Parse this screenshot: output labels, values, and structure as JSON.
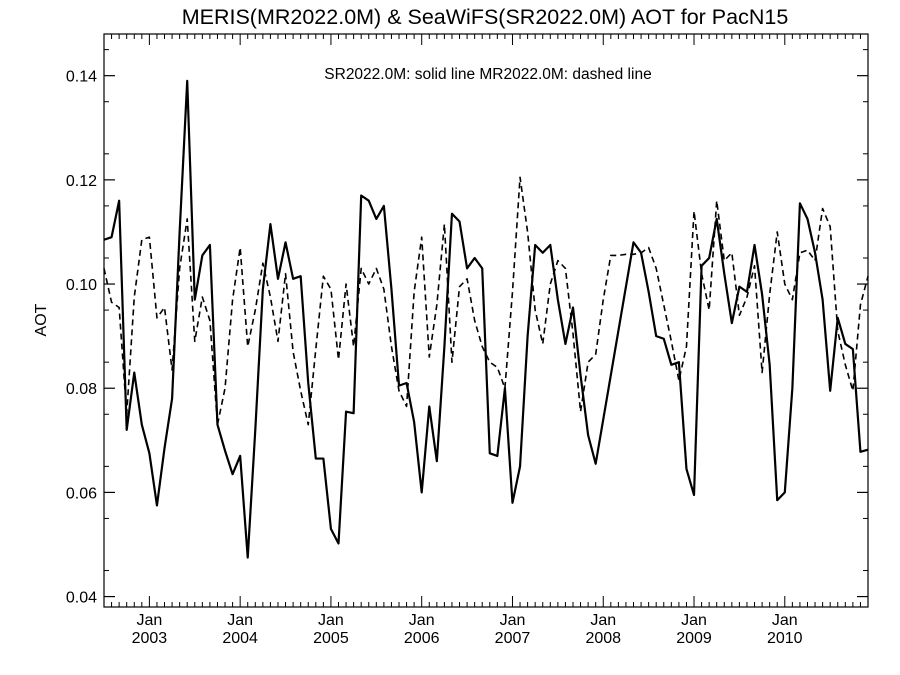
{
  "chart_data": {
    "type": "line",
    "title": "MERIS(MR2022.0M) & SeaWiFS(SR2022.0M)  AOT for PacN15",
    "subtitle": "SR2022.0M: solid line   MR2022.0M: dashed line",
    "xlabel": "",
    "ylabel": "AOT",
    "ylim": [
      0.038,
      0.148
    ],
    "xlim": [
      "2002-07",
      "2010-12"
    ],
    "yticks": [
      "0.04",
      "0.06",
      "0.08",
      "0.10",
      "0.12",
      "0.14"
    ],
    "xticks": [
      {
        "month": "Jan",
        "year": "2003",
        "date": "2003-01"
      },
      {
        "month": "Jan",
        "year": "2004",
        "date": "2004-01"
      },
      {
        "month": "Jan",
        "year": "2005",
        "date": "2005-01"
      },
      {
        "month": "Jan",
        "year": "2006",
        "date": "2006-01"
      },
      {
        "month": "Jan",
        "year": "2007",
        "date": "2007-01"
      },
      {
        "month": "Jan",
        "year": "2008",
        "date": "2008-01"
      },
      {
        "month": "Jan",
        "year": "2009",
        "date": "2009-01"
      },
      {
        "month": "Jan",
        "year": "2010",
        "date": "2010-01"
      }
    ],
    "grid": false,
    "series": [
      {
        "name": "SR2022.0M",
        "style": "solid",
        "color": "#000000",
        "x": [
          "2002-07",
          "2002-08",
          "2002-09",
          "2002-10",
          "2002-11",
          "2002-12",
          "2003-01",
          "2003-02",
          "2003-03",
          "2003-04",
          "2003-05",
          "2003-06",
          "2003-07",
          "2003-08",
          "2003-09",
          "2003-10",
          "2003-11",
          "2003-12",
          "2004-01",
          "2004-02",
          "2004-03",
          "2004-04",
          "2004-05",
          "2004-06",
          "2004-07",
          "2004-08",
          "2004-09",
          "2004-10",
          "2004-11",
          "2004-12",
          "2005-01",
          "2005-02",
          "2005-03",
          "2005-04",
          "2005-05",
          "2005-06",
          "2005-07",
          "2005-08",
          "2005-09",
          "2005-10",
          "2005-11",
          "2005-12",
          "2006-01",
          "2006-02",
          "2006-03",
          "2006-04",
          "2006-05",
          "2006-06",
          "2006-07",
          "2006-08",
          "2006-09",
          "2006-10",
          "2006-11",
          "2006-12",
          "2007-01",
          "2007-02",
          "2007-03",
          "2007-04",
          "2007-05",
          "2007-06",
          "2007-07",
          "2007-08",
          "2007-09",
          "2007-10",
          "2007-11",
          "2007-12",
          "2008-05",
          "2008-06",
          "2008-07",
          "2008-08",
          "2008-09",
          "2008-10",
          "2008-11",
          "2008-12",
          "2009-01",
          "2009-02",
          "2009-03",
          "2009-04",
          "2009-05",
          "2009-06",
          "2009-07",
          "2009-08",
          "2009-09",
          "2009-10",
          "2009-11",
          "2009-12",
          "2010-01",
          "2010-02",
          "2010-03",
          "2010-04",
          "2010-05",
          "2010-06",
          "2010-07",
          "2010-08",
          "2010-09",
          "2010-10",
          "2010-11",
          "2010-12"
        ],
        "values": [
          0.1085,
          0.109,
          0.116,
          0.072,
          0.083,
          0.073,
          0.0675,
          0.0575,
          0.0685,
          0.078,
          0.11,
          0.139,
          0.097,
          0.1055,
          0.1075,
          0.073,
          0.068,
          0.0635,
          0.067,
          0.0475,
          0.072,
          0.099,
          0.1115,
          0.101,
          0.108,
          0.101,
          0.1015,
          0.081,
          0.0665,
          0.0665,
          0.053,
          0.0502,
          0.0755,
          0.0752,
          0.117,
          0.116,
          0.1125,
          0.115,
          0.099,
          0.0805,
          0.081,
          0.0735,
          0.06,
          0.0765,
          0.066,
          0.088,
          0.1135,
          0.112,
          0.103,
          0.105,
          0.103,
          0.0675,
          0.067,
          0.08,
          0.058,
          0.065,
          0.09,
          0.1075,
          0.106,
          0.1075,
          0.097,
          0.0885,
          0.0955,
          0.0825,
          0.071,
          0.0655,
          0.108,
          0.106,
          0.0985,
          0.09,
          0.0895,
          0.0845,
          0.085,
          0.0645,
          0.0595,
          0.1035,
          0.105,
          0.1125,
          0.102,
          0.0925,
          0.0995,
          0.0985,
          0.1075,
          0.098,
          0.0845,
          0.0585,
          0.06,
          0.08,
          0.1155,
          0.1125,
          0.106,
          0.097,
          0.0795,
          0.0935,
          0.0885,
          0.0875,
          0.0678,
          0.0682
        ]
      },
      {
        "name": "MR2022.0M",
        "style": "dashed",
        "color": "#000000",
        "x": [
          "2002-07",
          "2002-08",
          "2002-09",
          "2002-10",
          "2002-11",
          "2002-12",
          "2003-01",
          "2003-02",
          "2003-03",
          "2003-04",
          "2003-05",
          "2003-06",
          "2003-07",
          "2003-08",
          "2003-09",
          "2003-10",
          "2003-11",
          "2003-12",
          "2004-01",
          "2004-02",
          "2004-03",
          "2004-04",
          "2004-05",
          "2004-06",
          "2004-07",
          "2004-08",
          "2004-09",
          "2004-10",
          "2004-11",
          "2004-12",
          "2005-01",
          "2005-02",
          "2005-03",
          "2005-04",
          "2005-05",
          "2005-06",
          "2005-07",
          "2005-08",
          "2005-09",
          "2005-10",
          "2005-11",
          "2005-12",
          "2006-01",
          "2006-02",
          "2006-03",
          "2006-04",
          "2006-05",
          "2006-06",
          "2006-07",
          "2006-08",
          "2006-09",
          "2006-10",
          "2006-11",
          "2006-12",
          "2007-01",
          "2007-02",
          "2007-03",
          "2007-04",
          "2007-05",
          "2007-06",
          "2007-07",
          "2007-08",
          "2007-09",
          "2007-10",
          "2007-11",
          "2007-12",
          "2008-01",
          "2008-02",
          "2008-03",
          "2008-04",
          "2008-05",
          "2008-06",
          "2008-07",
          "2008-08",
          "2008-09",
          "2008-10",
          "2008-11",
          "2008-12",
          "2009-01",
          "2009-02",
          "2009-03",
          "2009-04",
          "2009-05",
          "2009-06",
          "2009-07",
          "2009-08",
          "2009-09",
          "2009-10",
          "2009-11",
          "2009-12",
          "2010-01",
          "2010-02",
          "2010-03",
          "2010-04",
          "2010-05",
          "2010-06",
          "2010-07",
          "2010-08",
          "2010-09",
          "2010-10",
          "2010-11",
          "2010-12"
        ],
        "values": [
          0.103,
          0.0965,
          0.0955,
          0.075,
          0.0975,
          0.1085,
          0.109,
          0.0935,
          0.0955,
          0.0835,
          0.103,
          0.1125,
          0.089,
          0.0975,
          0.093,
          0.073,
          0.08,
          0.097,
          0.107,
          0.088,
          0.095,
          0.104,
          0.0975,
          0.089,
          0.102,
          0.087,
          0.0795,
          0.073,
          0.0875,
          0.1015,
          0.099,
          0.0855,
          0.1,
          0.088,
          0.103,
          0.1,
          0.103,
          0.099,
          0.088,
          0.0795,
          0.0765,
          0.0985,
          0.109,
          0.086,
          0.096,
          0.1115,
          0.085,
          0.0995,
          0.101,
          0.093,
          0.088,
          0.085,
          0.084,
          0.08,
          0.0985,
          0.1205,
          0.11,
          0.095,
          0.0885,
          0.1,
          0.1045,
          0.103,
          0.0905,
          0.0755,
          0.085,
          0.0865,
          0.097,
          0.1055,
          0.1055,
          0.1057,
          0.1057,
          0.106,
          0.107,
          0.103,
          0.096,
          0.089,
          0.0815,
          0.088,
          0.114,
          0.102,
          0.095,
          0.116,
          0.1045,
          0.106,
          0.094,
          0.0975,
          0.1035,
          0.083,
          0.098,
          0.11,
          0.1,
          0.097,
          0.106,
          0.1065,
          0.1045,
          0.1145,
          0.111,
          0.091,
          0.0845,
          0.0795,
          0.096,
          0.1015
        ]
      }
    ]
  }
}
